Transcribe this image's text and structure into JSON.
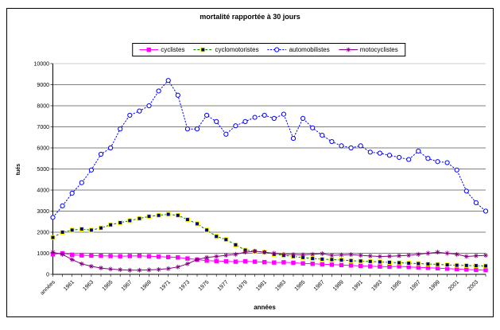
{
  "figure": {
    "title": "mortalité rapportée à 30 jours",
    "y_axis_title": "tués",
    "x_axis_title": "années"
  },
  "chart_data": {
    "type": "line",
    "title": "mortalité rapportée à 30 jours",
    "xlabel": "années",
    "ylabel": "tués",
    "ylim": [
      0,
      10000
    ],
    "ytick_step": 1000,
    "ytick_labels": [
      "0",
      "1000",
      "2000",
      "3000",
      "4000",
      "5000",
      "6000",
      "7000",
      "8000",
      "9000",
      "10000"
    ],
    "grid": "horizontal",
    "legend_position": "top",
    "categories": [
      "années",
      "1960",
      "1961",
      "1962",
      "1963",
      "1964",
      "1965",
      "1966",
      "1967",
      "1968",
      "1969",
      "1970",
      "1971",
      "1972",
      "1973",
      "1974",
      "1975",
      "1976",
      "1977",
      "1978",
      "1979",
      "1980",
      "1981",
      "1982",
      "1983",
      "1984",
      "1985",
      "1986",
      "1987",
      "1988",
      "1989",
      "1990",
      "1991",
      "1992",
      "1993",
      "1994",
      "1995",
      "1996",
      "1997",
      "1998",
      "1999",
      "2000",
      "2001",
      "2002",
      "2003",
      "2004"
    ],
    "xtick_labels_shown": [
      "années",
      "1961",
      "1963",
      "1965",
      "1967",
      "1969",
      "1971",
      "1973",
      "1975",
      "1977",
      "1979",
      "1981",
      "1983",
      "1985",
      "1987",
      "1989",
      "1991",
      "1993",
      "1995",
      "1997",
      "1999",
      "2001",
      "2003"
    ],
    "series": [
      {
        "name": "cyclistes",
        "line_color": "#FF00FF",
        "line_style": "solid",
        "marker": "filled-square",
        "marker_fill": "#FF00FF",
        "marker_stroke": "#FF00FF",
        "values": [
          950,
          1000,
          930,
          900,
          890,
          880,
          870,
          860,
          870,
          880,
          860,
          840,
          820,
          800,
          750,
          700,
          650,
          630,
          620,
          600,
          620,
          600,
          580,
          560,
          570,
          550,
          520,
          500,
          480,
          460,
          440,
          420,
          400,
          380,
          370,
          360,
          380,
          350,
          330,
          310,
          290,
          270,
          250,
          230,
          210,
          200
        ]
      },
      {
        "name": "cyclomotoristes",
        "line_color": "#008000",
        "line_style": "dashed",
        "marker": "square",
        "marker_fill": "#000080",
        "marker_stroke": "#FFFF00",
        "values": [
          1750,
          2000,
          2100,
          2150,
          2100,
          2200,
          2350,
          2450,
          2550,
          2650,
          2750,
          2800,
          2850,
          2800,
          2600,
          2400,
          2100,
          1800,
          1650,
          1400,
          1150,
          1100,
          1050,
          950,
          900,
          850,
          800,
          750,
          720,
          700,
          680,
          650,
          630,
          610,
          590,
          570,
          550,
          530,
          510,
          490,
          470,
          450,
          430,
          420,
          410,
          400
        ]
      },
      {
        "name": "automobilistes",
        "line_color": "#0000FF",
        "line_style": "fine-dashed",
        "marker": "open-circle",
        "marker_fill": "#FFFFFF",
        "marker_stroke": "#0000FF",
        "values": [
          2700,
          3250,
          3850,
          4350,
          4950,
          5700,
          6000,
          6900,
          7550,
          7750,
          8000,
          8700,
          9200,
          8500,
          6900,
          6900,
          7550,
          7250,
          6650,
          7050,
          7250,
          7450,
          7550,
          7400,
          7600,
          6450,
          7400,
          6950,
          6600,
          6300,
          6100,
          6000,
          6100,
          5800,
          5750,
          5650,
          5550,
          5450,
          5850,
          5500,
          5350,
          5300,
          4950,
          3950,
          3400,
          3000
        ]
      },
      {
        "name": "motocyclistes",
        "line_color": "#800080",
        "line_style": "solid",
        "marker": "asterisk",
        "marker_fill": "#800080",
        "marker_stroke": "#800080",
        "values": [
          1050,
          950,
          700,
          500,
          380,
          300,
          250,
          220,
          200,
          200,
          210,
          230,
          270,
          350,
          500,
          700,
          800,
          850,
          900,
          950,
          1050,
          1100,
          1050,
          1000,
          950,
          940,
          930,
          950,
          980,
          900,
          920,
          940,
          900,
          870,
          850,
          860,
          880,
          900,
          950,
          1000,
          1050,
          1000,
          950,
          850,
          880,
          900
        ]
      }
    ]
  }
}
